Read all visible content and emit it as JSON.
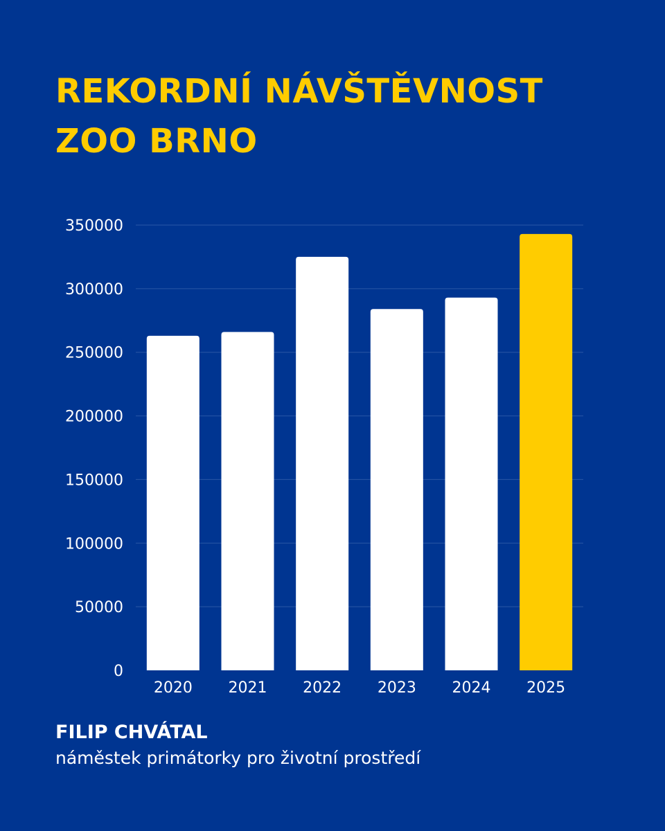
{
  "colors": {
    "background": "#003591",
    "accent": "#FFCC00",
    "bar": "#FFFFFF",
    "text": "#FFFFFF",
    "gridline": "#2a57a6"
  },
  "title_lines": [
    "REKORDNÍ NÁVŠTĚVNOST",
    "ZOO BRNO"
  ],
  "person": {
    "name": "FILIP CHVÁTAL",
    "role": "náměstek primátorky pro životní prostředí"
  },
  "chart_data": {
    "type": "bar",
    "categories": [
      "2020",
      "2021",
      "2022",
      "2023",
      "2024",
      "2025"
    ],
    "values": [
      263000,
      266000,
      325000,
      284000,
      293000,
      343000
    ],
    "highlight_index": 5,
    "ylim": [
      0,
      350000
    ],
    "yticks": [
      0,
      50000,
      100000,
      150000,
      200000,
      250000,
      300000,
      350000
    ],
    "ytick_labels": [
      "0",
      "50000",
      "100000",
      "150000",
      "200000",
      "250000",
      "300000",
      "350000"
    ],
    "grid": true,
    "legend": "none"
  }
}
